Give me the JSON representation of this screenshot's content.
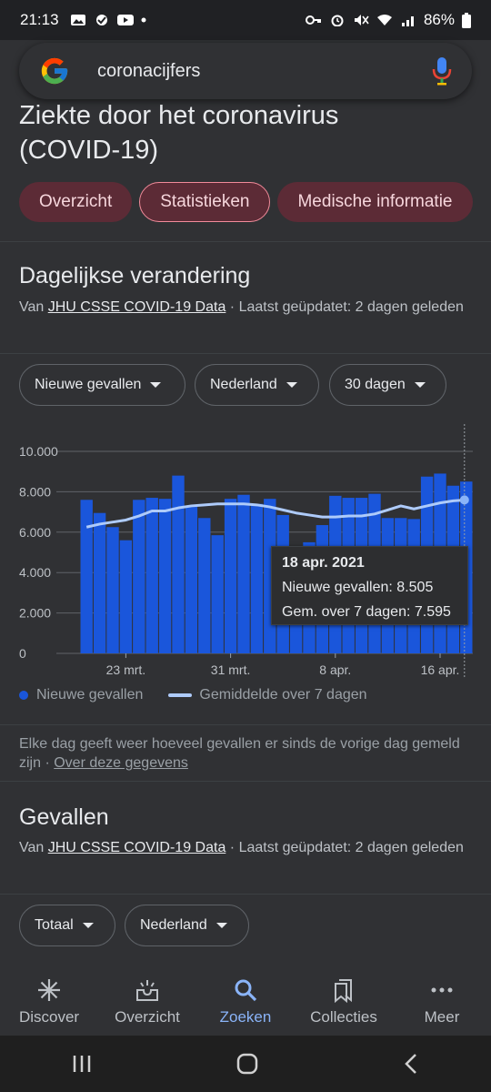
{
  "status": {
    "time": "21:13",
    "battery": "86%"
  },
  "search": {
    "query": "coronacijfers"
  },
  "page": {
    "title_line1": "Ziekte door het coronavirus",
    "title_line2": "(COVID-19)"
  },
  "chips": [
    {
      "label": "Overzicht"
    },
    {
      "label": "Statistieken"
    },
    {
      "label": "Medische informatie"
    }
  ],
  "daily": {
    "title": "Dagelijkse verandering",
    "source_prefix": "Van ",
    "source_link": "JHU CSSE COVID-19 Data",
    "source_suffix": " · Laatst geüpdatet: 2 dagen geleden",
    "filters": [
      "Nieuwe gevallen",
      "Nederland",
      "30 dagen"
    ]
  },
  "tooltip": {
    "date": "18 apr. 2021",
    "line1": "Nieuwe gevallen: 8.505",
    "line2": "Gem. over 7 dagen: 7.595"
  },
  "legend": {
    "bars": "Nieuwe gevallen",
    "line": "Gemiddelde over 7 dagen"
  },
  "note": {
    "text": "Elke dag geeft weer hoeveel gevallen er sinds de vorige dag gemeld zijn",
    "separator": " · ",
    "link": "Over deze gegevens"
  },
  "cases": {
    "title": "Gevallen",
    "source_prefix": "Van ",
    "source_link": "JHU CSSE COVID-19 Data",
    "source_suffix": " · Laatst geüpdatet: 2 dagen geleden",
    "filters": [
      "Totaal",
      "Nederland"
    ]
  },
  "nav": [
    {
      "label": "Discover",
      "icon": "asterisk-icon"
    },
    {
      "label": "Overzicht",
      "icon": "inbox-sparkle-icon"
    },
    {
      "label": "Zoeken",
      "icon": "search-icon",
      "active": true
    },
    {
      "label": "Collecties",
      "icon": "bookmarks-icon"
    },
    {
      "label": "Meer",
      "icon": "more-dots-icon"
    }
  ],
  "colors": {
    "bar": "#1a56db",
    "line": "#aecbfa",
    "chip_bg": "#5c2b36",
    "accent_blue": "#8ab4f8"
  },
  "chart_data": {
    "type": "bar",
    "categories": [
      "20 mrt.",
      "21 mrt.",
      "22 mrt.",
      "23 mrt.",
      "24 mrt.",
      "25 mrt.",
      "26 mrt.",
      "27 mrt.",
      "28 mrt.",
      "29 mrt.",
      "30 mrt.",
      "31 mrt.",
      "1 apr.",
      "2 apr.",
      "3 apr.",
      "4 apr.",
      "5 apr.",
      "6 apr.",
      "7 apr.",
      "8 apr.",
      "9 apr.",
      "10 apr.",
      "11 apr.",
      "12 apr.",
      "13 apr.",
      "14 apr.",
      "15 apr.",
      "16 apr.",
      "17 apr.",
      "18 apr."
    ],
    "series": [
      {
        "name": "Nieuwe gevallen",
        "values": [
          7600,
          6950,
          6250,
          5600,
          7600,
          7700,
          7650,
          8800,
          7250,
          6700,
          5850,
          7650,
          7850,
          7400,
          7650,
          6850,
          5250,
          5500,
          6350,
          7800,
          7700,
          7700,
          7900,
          6700,
          6700,
          6650,
          8750,
          8900,
          8300,
          8505
        ]
      },
      {
        "name": "Gemiddelde over 7 dagen",
        "values": [
          6250,
          6400,
          6500,
          6600,
          6800,
          7050,
          7050,
          7200,
          7300,
          7350,
          7400,
          7400,
          7400,
          7350,
          7250,
          7100,
          6950,
          6850,
          6750,
          6750,
          6800,
          6800,
          6900,
          7100,
          7300,
          7150,
          7300,
          7450,
          7550,
          7595
        ]
      }
    ],
    "xticks": [
      "23 mrt.",
      "31 mrt.",
      "8 apr.",
      "16 apr."
    ],
    "yticks": [
      "0",
      "2.000",
      "4.000",
      "6.000",
      "8.000",
      "10.000"
    ],
    "ylim": [
      0,
      10000
    ],
    "grid": true,
    "legend_position": "bottom"
  }
}
